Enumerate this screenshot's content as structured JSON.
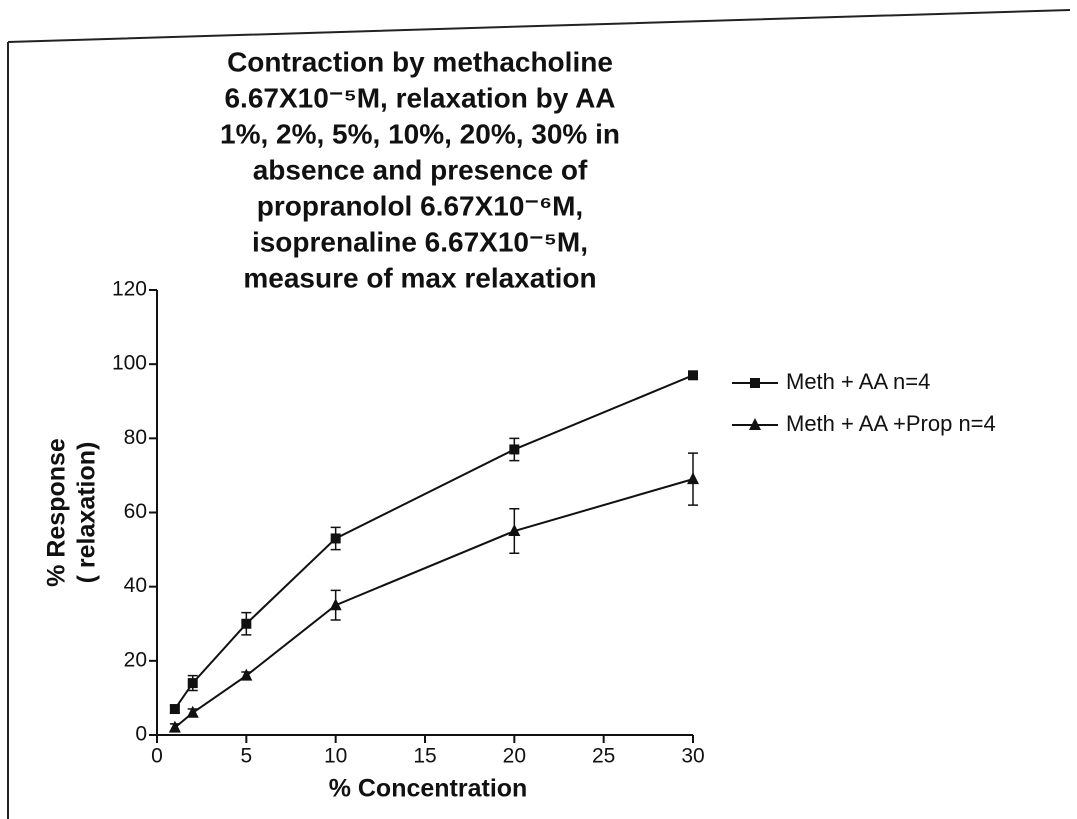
{
  "chart_data": {
    "type": "line",
    "title": [
      "Contraction by methacholine",
      "6.67X10⁻⁵M, relaxation by AA",
      "1%, 2%, 5%, 10%, 20%, 30% in",
      "absence and presence of",
      "propranolol 6.67X10⁻⁶M,",
      "isoprenaline 6.67X10⁻⁵M,",
      "measure of max relaxation"
    ],
    "x_label": "% Concentration",
    "y_label": [
      "% Response",
      "( relaxation)"
    ],
    "x": [
      1,
      2,
      5,
      10,
      20,
      30
    ],
    "series": [
      {
        "name": "Meth + AA n=4",
        "color": "#111111",
        "marker": "square",
        "values": [
          7,
          14,
          30,
          53,
          77,
          97
        ],
        "errors": [
          1,
          2,
          3,
          3,
          3,
          1
        ]
      },
      {
        "name": "Meth + AA +Prop n=4",
        "color": "#111111",
        "marker": "triangle",
        "values": [
          2,
          6,
          16,
          35,
          55,
          69
        ],
        "errors": [
          1,
          1,
          1,
          4,
          6,
          7
        ]
      }
    ],
    "xlim": [
      0,
      30
    ],
    "xticks": [
      0,
      5,
      10,
      15,
      20,
      25,
      30
    ],
    "ylim": [
      0,
      120
    ],
    "yticks": [
      0,
      20,
      40,
      60,
      80,
      100,
      120
    ],
    "legend": "upper right"
  }
}
